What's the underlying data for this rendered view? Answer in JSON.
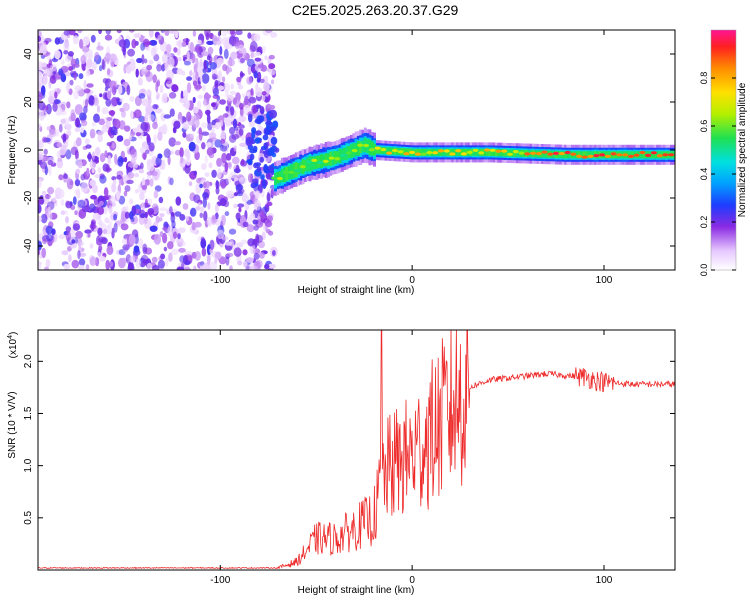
{
  "title": "C2E5.2025.263.20.37.G29",
  "chart_data": [
    {
      "type": "heatmap",
      "name": "spectrogram",
      "xlabel": "Height of straight line (km)",
      "ylabel": "Frequency (Hz)",
      "xlim": [
        -195,
        137
      ],
      "ylim": [
        -50,
        50
      ],
      "xticks": [
        -100,
        0,
        100
      ],
      "xtick_labels": [
        "-100",
        "0",
        "100"
      ],
      "yticks": [
        -40,
        -20,
        0,
        20,
        40
      ],
      "ytick_labels": [
        "-40",
        "-20",
        "0",
        "20",
        "40"
      ],
      "colorbar": {
        "label": "Normalized spectral amplitude",
        "range": [
          0,
          1
        ],
        "ticks": [
          0,
          0.2,
          0.4,
          0.6,
          0.8
        ],
        "tick_labels": [
          "0.0",
          "0.2",
          "0.4",
          "0.6",
          "0.8"
        ]
      },
      "features": {
        "noise_region_x": [
          -195,
          -72
        ],
        "noise_amplitude": [
          0.05,
          0.25
        ],
        "ridge_x": [
          -72,
          137
        ],
        "ridge_frequency_trend": [
          {
            "x": -72,
            "f": -12
          },
          {
            "x": -55,
            "f": -6
          },
          {
            "x": -40,
            "f": -3
          },
          {
            "x": -25,
            "f": 2
          },
          {
            "x": -20,
            "f": 0
          },
          {
            "x": 0,
            "f": -1
          },
          {
            "x": 40,
            "f": -1
          },
          {
            "x": 80,
            "f": -2
          },
          {
            "x": 137,
            "f": -2
          }
        ]
      }
    },
    {
      "type": "line",
      "name": "snr",
      "xlabel": "Height of straight line (km)",
      "ylabel": "SNR (10 * V/V)",
      "y_scale_label": "(x10",
      "y_scale_exponent": "4",
      "y_scale_suffix": ")",
      "xlim": [
        -195,
        137
      ],
      "ylim": [
        0,
        2.3
      ],
      "xticks": [
        -100,
        0,
        100
      ],
      "xtick_labels": [
        "-100",
        "0",
        "100"
      ],
      "yticks": [
        0.5,
        1.0,
        1.5,
        2.0
      ],
      "ytick_labels": [
        "0.5",
        "1.0",
        "1.5",
        "2.0"
      ],
      "color": "#ee2a2a",
      "envelope": [
        {
          "x": -195,
          "y": 0.02
        },
        {
          "x": -70,
          "y": 0.02
        },
        {
          "x": -60,
          "y": 0.08
        },
        {
          "x": -50,
          "y": 0.3
        },
        {
          "x": -40,
          "y": 0.3
        },
        {
          "x": -30,
          "y": 0.4
        },
        {
          "x": -20,
          "y": 0.5
        },
        {
          "x": -15,
          "y": 0.9
        },
        {
          "x": -10,
          "y": 1.0
        },
        {
          "x": 0,
          "y": 1.1
        },
        {
          "x": 10,
          "y": 1.3
        },
        {
          "x": 20,
          "y": 1.55
        },
        {
          "x": 30,
          "y": 1.75
        },
        {
          "x": 40,
          "y": 1.82
        },
        {
          "x": 60,
          "y": 1.86
        },
        {
          "x": 70,
          "y": 1.88
        },
        {
          "x": 90,
          "y": 1.85
        },
        {
          "x": 100,
          "y": 1.8
        },
        {
          "x": 115,
          "y": 1.78
        },
        {
          "x": 137,
          "y": 1.78
        }
      ],
      "peak": {
        "x": -16,
        "y": 2.3
      }
    }
  ],
  "colors": {
    "noise_purple": "#8a2be2",
    "ridge_core": "#e02020"
  }
}
